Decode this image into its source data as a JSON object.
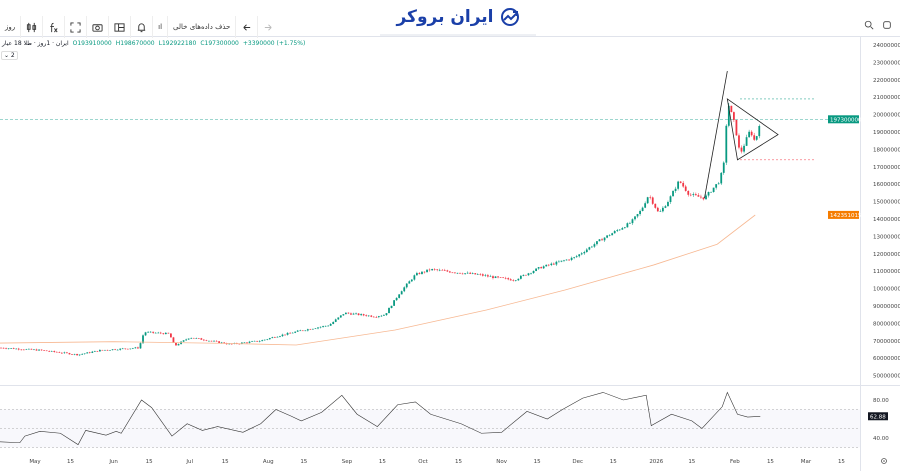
{
  "toolbar": {
    "interval": "روز",
    "remove_empty": "حذف داده‌های خالی",
    "indicator": "ıl"
  },
  "logo": {
    "text": "ایران بروکر"
  },
  "legend": {
    "title": "ایران · 1روز · طلا 18 عیار",
    "open": "O193910000",
    "high": "H198670000",
    "low": "L192922180",
    "close": "C197300000",
    "change": "+3390000 (+1.75%)",
    "collapse": "⌄ 2"
  },
  "colors": {
    "up": "#089981",
    "down": "#f23645",
    "ma": "#f7b892",
    "accent": "#1a3fa8"
  },
  "chart_data": [
    {
      "type": "candlestick",
      "price_axis": [
        "240000000",
        "230000000",
        "220000000",
        "210000000",
        "200000000",
        "190000000",
        "180000000",
        "170000000",
        "160000000",
        "150000000",
        "140000000",
        "130000000",
        "120000000",
        "110000000",
        "100000000",
        "90000000",
        "80000000",
        "70000000",
        "60000000",
        "50000000"
      ],
      "ylim": [
        50000000,
        240000000
      ],
      "time_axis": [
        "May",
        "15",
        "Jun",
        "15",
        "Jul",
        "15",
        "Aug",
        "15",
        "Sep",
        "15",
        "Oct",
        "15",
        "Nov",
        "15",
        "Dec",
        "15",
        "2026",
        "15",
        "Feb",
        "15",
        "Mar",
        "15"
      ],
      "last_price_label": "197300000",
      "ma_label": "142351015",
      "close_path": [
        [
          "2025-04-17",
          66000000
        ],
        [
          "2025-05-03",
          64600000
        ],
        [
          "2025-05-18",
          62000000
        ],
        [
          "2025-05-27",
          64600000
        ],
        [
          "2025-06-11",
          66000000
        ],
        [
          "2025-06-13",
          75000000
        ],
        [
          "2025-06-23",
          74000000
        ],
        [
          "2025-06-25",
          67000000
        ],
        [
          "2025-07-01",
          72000000
        ],
        [
          "2025-07-17",
          68000000
        ],
        [
          "2025-07-29",
          70000000
        ],
        [
          "2025-08-04",
          72500000
        ],
        [
          "2025-08-13",
          75600000
        ],
        [
          "2025-08-25",
          79000000
        ],
        [
          "2025-08-31",
          86000000
        ],
        [
          "2025-09-12",
          84000000
        ],
        [
          "2025-09-16",
          85000000
        ],
        [
          "2025-09-22",
          98000000
        ],
        [
          "2025-09-28",
          108000000
        ],
        [
          "2025-10-04",
          111000000
        ],
        [
          "2025-10-16",
          109000000
        ],
        [
          "2025-10-23",
          108000000
        ],
        [
          "2025-10-31",
          106000000
        ],
        [
          "2025-11-06",
          105000000
        ],
        [
          "2025-11-16",
          112000000
        ],
        [
          "2025-11-30",
          118000000
        ],
        [
          "2025-12-10",
          128000000
        ],
        [
          "2025-12-22",
          138000000
        ],
        [
          "2025-12-26",
          145000000
        ],
        [
          "2025-12-29",
          154000000
        ],
        [
          "2026-01-02",
          143000000
        ],
        [
          "2026-01-06",
          151000000
        ],
        [
          "2026-01-10",
          162000000
        ],
        [
          "2026-01-14",
          154000000
        ],
        [
          "2026-01-20",
          152000000
        ],
        [
          "2026-01-26",
          162000000
        ],
        [
          "2026-01-28",
          174000000
        ],
        [
          "2026-01-29",
          208000000
        ],
        [
          "2026-02-01",
          194000000
        ],
        [
          "2026-02-03",
          177000000
        ],
        [
          "2026-02-07",
          191000000
        ],
        [
          "2026-02-09",
          184000000
        ],
        [
          "2026-02-11",
          197300000
        ]
      ],
      "ma_path": [
        [
          "2025-04-17",
          68700000
        ],
        [
          "2025-06-01",
          69500000
        ],
        [
          "2025-07-15",
          68500000
        ],
        [
          "2025-08-12",
          67600000
        ],
        [
          "2025-09-20",
          76200000
        ],
        [
          "2025-10-26",
          87700000
        ],
        [
          "2025-11-26",
          99200000
        ],
        [
          "2025-12-31",
          113600000
        ],
        [
          "2026-01-25",
          125500000
        ],
        [
          "2026-02-09",
          142300000
        ]
      ],
      "annotations": {
        "pole_from": [
          "2026-01-20",
          152000000
        ],
        "pole_to": [
          "2026-01-29",
          225000000
        ],
        "triangle": [
          [
            "2026-01-29",
            209000000
          ],
          [
            "2026-02-18",
            188500000
          ],
          [
            "2026-02-02",
            174000000
          ]
        ],
        "resistance": 209000000,
        "support": 174000000
      }
    },
    {
      "type": "line",
      "indicator": "RSI",
      "axis": [
        "80.00",
        "40.00"
      ],
      "value_label": "62.88",
      "bands": [
        70,
        50,
        30
      ],
      "path": [
        [
          "2025-04-17",
          36
        ],
        [
          "2025-04-25",
          35
        ],
        [
          "2025-04-27",
          42
        ],
        [
          "2025-05-03",
          47
        ],
        [
          "2025-05-11",
          45
        ],
        [
          "2025-05-18",
          33
        ],
        [
          "2025-05-21",
          48
        ],
        [
          "2025-05-29",
          43
        ],
        [
          "2025-06-02",
          47
        ],
        [
          "2025-06-04",
          45
        ],
        [
          "2025-06-12",
          80
        ],
        [
          "2025-06-16",
          72
        ],
        [
          "2025-06-24",
          42
        ],
        [
          "2025-06-30",
          55
        ],
        [
          "2025-07-06",
          48
        ],
        [
          "2025-07-12",
          52
        ],
        [
          "2025-07-22",
          46
        ],
        [
          "2025-07-29",
          55
        ],
        [
          "2025-08-04",
          70
        ],
        [
          "2025-08-10",
          63
        ],
        [
          "2025-08-14",
          58
        ],
        [
          "2025-08-22",
          67
        ],
        [
          "2025-08-30",
          85
        ],
        [
          "2025-09-05",
          65
        ],
        [
          "2025-09-13",
          52
        ],
        [
          "2025-09-21",
          75
        ],
        [
          "2025-09-28",
          78
        ],
        [
          "2025-10-04",
          65
        ],
        [
          "2025-10-16",
          55
        ],
        [
          "2025-10-24",
          45
        ],
        [
          "2025-11-01",
          46
        ],
        [
          "2025-11-11",
          68
        ],
        [
          "2025-11-19",
          60
        ],
        [
          "2025-11-25",
          70
        ],
        [
          "2025-12-03",
          82
        ],
        [
          "2025-12-11",
          88
        ],
        [
          "2025-12-19",
          80
        ],
        [
          "2025-12-28",
          85
        ],
        [
          "2025-12-30",
          53
        ],
        [
          "2026-01-07",
          65
        ],
        [
          "2026-01-15",
          58
        ],
        [
          "2026-01-19",
          50
        ],
        [
          "2026-01-27",
          73
        ],
        [
          "2026-01-29",
          88
        ],
        [
          "2026-02-02",
          65
        ],
        [
          "2026-02-06",
          62
        ],
        [
          "2026-02-11",
          62.88
        ]
      ]
    }
  ]
}
